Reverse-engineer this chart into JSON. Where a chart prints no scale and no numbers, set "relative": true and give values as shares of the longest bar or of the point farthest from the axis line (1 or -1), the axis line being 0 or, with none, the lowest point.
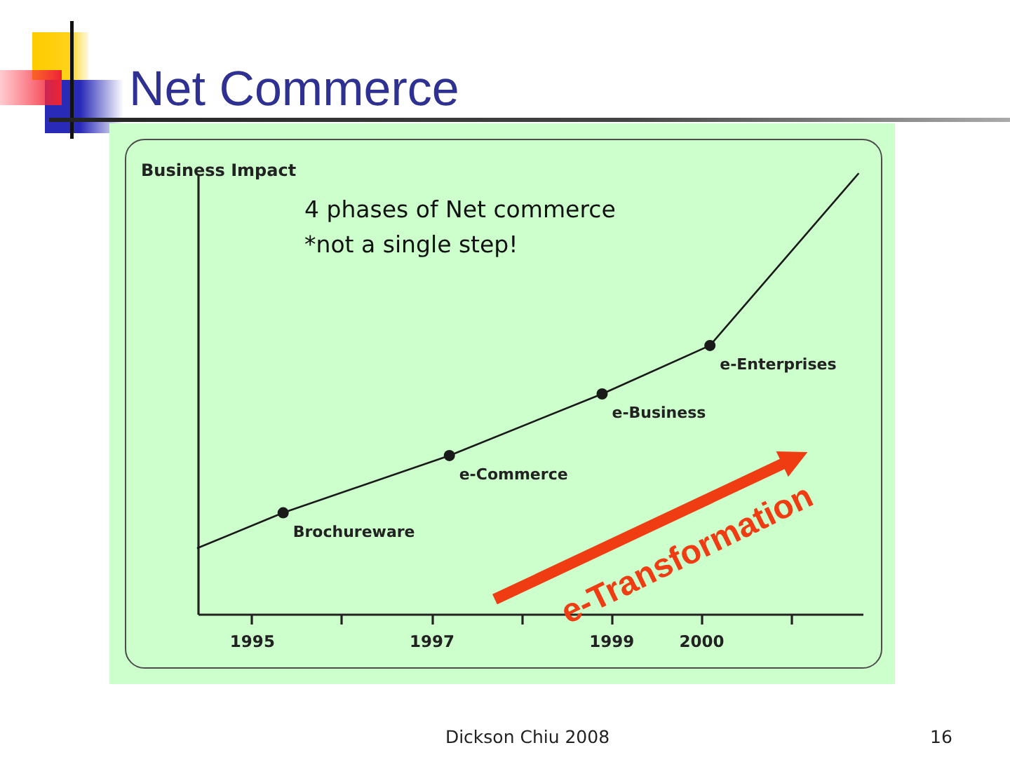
{
  "chart_data": {
    "type": "line",
    "title": "Net Commerce",
    "ylabel": "Business Impact",
    "relative": true,
    "xlim": [
      1994.4,
      2001.8
    ],
    "xticks": [
      1995,
      {
        "value": 1996,
        "label": null
      },
      1997,
      {
        "value": 1998,
        "label": null
      },
      1999,
      2000,
      {
        "value": 2001,
        "label": null
      }
    ],
    "series": [
      {
        "color": "#1a1a1a",
        "x": [
          1994.4,
          1995.35,
          1997.2,
          1998.9,
          2000.1,
          2001.75
        ],
        "values": [
          0.15,
          0.23,
          0.36,
          0.5,
          0.61,
          1
        ]
      },
      {
        "type": "scatter",
        "color": "#1a1a1a",
        "x": [
          1995.35,
          1997.2,
          1998.9,
          2000.1
        ],
        "values": [
          0.23,
          0.36,
          0.5,
          0.61
        ]
      }
    ],
    "tick_labels": "x",
    "annotations": [
      "4 phases of Net commerce",
      "*not a single step!",
      "e-Transformation",
      "Dickson Chiu 2008",
      "16",
      {
        "text": "Brochureware",
        "x": 1995.35,
        "y": 0.23
      },
      {
        "text": "e-Commerce",
        "x": 1997.2,
        "y": 0.36
      },
      {
        "text": "e-Business",
        "x": 1998.9,
        "y": 0.5
      },
      {
        "text": "e-Enterprises",
        "x": 2000.1,
        "y": 0.61
      }
    ]
  }
}
